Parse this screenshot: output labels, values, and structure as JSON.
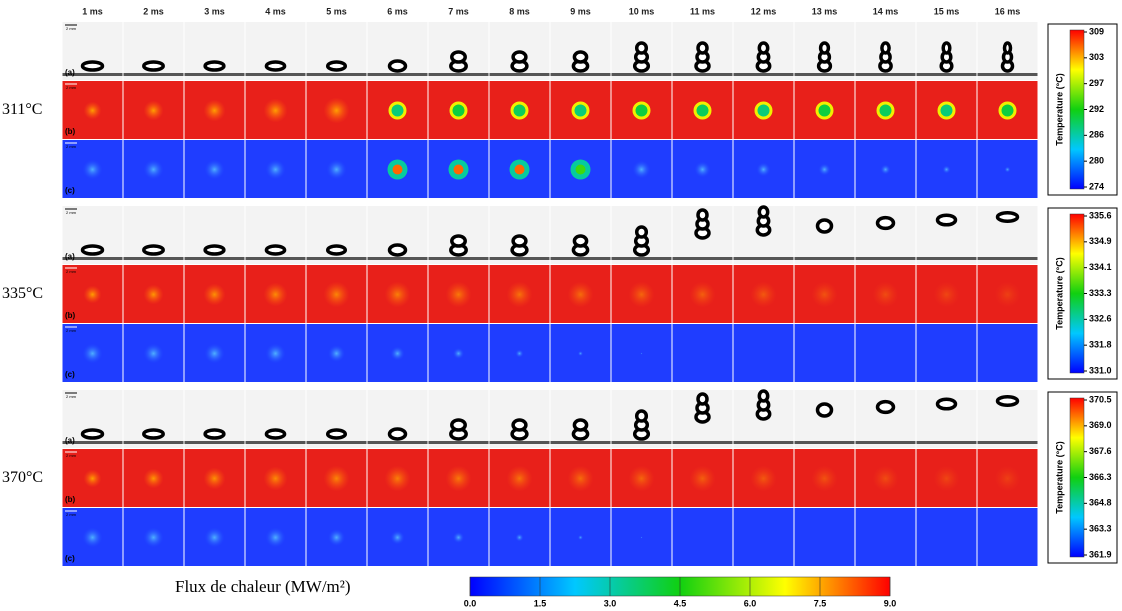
{
  "time_labels": [
    "1 ms",
    "2 ms",
    "3 ms",
    "4 ms",
    "5 ms",
    "6 ms",
    "7 ms",
    "8 ms",
    "9 ms",
    "10 ms",
    "11 ms",
    "12 ms",
    "13 ms",
    "14 ms",
    "15 ms",
    "16 ms"
  ],
  "scale_bar": "2 mm",
  "row_labels": [
    "(a)",
    "(b)",
    "(c)"
  ],
  "groups": [
    {
      "label": "311°C",
      "colorbar": {
        "title": "Temperature (°C)",
        "ticks": [
          "309",
          "303",
          "297",
          "292",
          "286",
          "280",
          "274"
        ]
      }
    },
    {
      "label": "335°C",
      "colorbar": {
        "title": "Temperature (°C)",
        "ticks": [
          "335.6",
          "334.9",
          "334.1",
          "333.3",
          "332.6",
          "331.8",
          "331.0"
        ]
      }
    },
    {
      "label": "370°C",
      "colorbar": {
        "title": "Temperature (°C)",
        "ticks": [
          "370.5",
          "369.0",
          "367.6",
          "366.3",
          "364.8",
          "363.3",
          "361.9"
        ]
      }
    }
  ],
  "flux_bar": {
    "title": "Flux de chaleur (MW/m²)",
    "ticks": [
      "0.0",
      "1.5",
      "3.0",
      "4.5",
      "6.0",
      "7.5",
      "9.0"
    ]
  }
}
